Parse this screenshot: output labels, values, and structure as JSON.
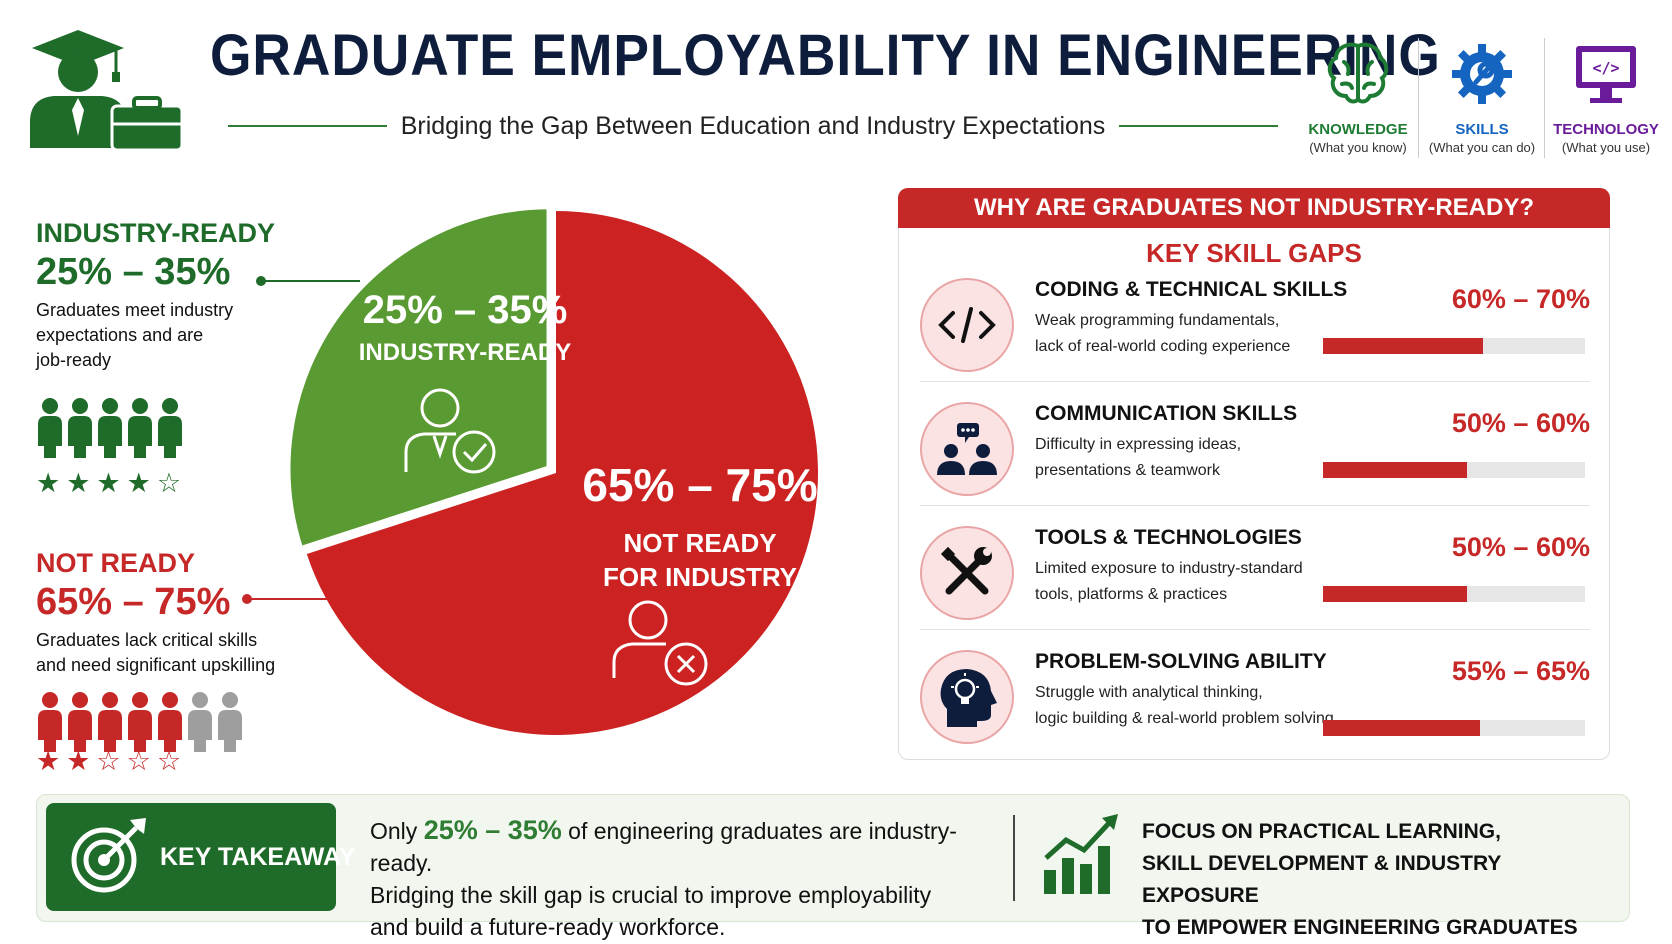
{
  "header": {
    "title": "GRADUATE EMPLOYABILITY IN ENGINEERING",
    "subtitle": "Bridging the Gap Between Education and Industry Expectations",
    "pillars": [
      {
        "icon": "brain-icon",
        "label": "KNOWLEDGE",
        "sub": "(What you know)",
        "color": "#1e7b34"
      },
      {
        "icon": "gear-wrench-icon",
        "label": "SKILLS",
        "sub": "(What you can do)",
        "color": "#1565c0"
      },
      {
        "icon": "monitor-code-icon",
        "label": "TECHNOLOGY",
        "sub": "(What you use)",
        "color": "#6a1b9a"
      }
    ]
  },
  "left": {
    "ready": {
      "heading": "INDUSTRY-READY",
      "range": "25% – 35%",
      "desc_lines": [
        "Graduates meet industry",
        "expectations and are",
        "job-ready"
      ],
      "stars": "★★★★☆",
      "rating": 4,
      "color": "#2e7d32"
    },
    "not_ready": {
      "heading": "NOT READY",
      "range": "65% – 75%",
      "desc_lines": [
        "Graduates lack critical skills",
        "and need significant upskilling"
      ],
      "stars": "★★☆☆☆",
      "rating": 2,
      "color": "#c62828"
    }
  },
  "pie": {
    "ready_pct": "25% – 35%",
    "ready_label": "INDUSTRY-READY",
    "not_pct": "65% – 75%",
    "not_label_1": "NOT READY",
    "not_label_2": "FOR INDUSTRY",
    "ready_share": 30,
    "not_share": 70,
    "green": "#5a9a32",
    "red": "#cc2222"
  },
  "panel": {
    "title": "WHY ARE GRADUATES NOT INDUSTRY-READY?",
    "subtitle": "KEY SKILL GAPS",
    "gaps": [
      {
        "icon": "code-icon",
        "title": "CODING & TECHNICAL SKILLS",
        "desc1": "Weak programming fundamentals,",
        "desc2": "lack of real-world coding experience",
        "pct": "60% – 70%",
        "level": 0.61
      },
      {
        "icon": "people-chat-icon",
        "title": "COMMUNICATION SKILLS",
        "desc1": "Difficulty in expressing ideas,",
        "desc2": "presentations & teamwork",
        "pct": "50% – 60%",
        "level": 0.55
      },
      {
        "icon": "tools-icon",
        "title": "TOOLS & TECHNOLOGIES",
        "desc1": "Limited exposure to industry-standard",
        "desc2": "tools, platforms & practices",
        "pct": "50% – 60%",
        "level": 0.55
      },
      {
        "icon": "head-lightbulb-icon",
        "title": "PROBLEM-SOLVING ABILITY",
        "desc1": "Struggle with analytical thinking,",
        "desc2": "logic building & real-world problem solving",
        "pct": "55% – 65%",
        "level": 0.6
      }
    ]
  },
  "takeaway": {
    "label": "KEY TAKEAWAY",
    "pre": "Only ",
    "highlight": "25% – 35%",
    "post": " of engineering graduates are industry-ready.",
    "line2": "Bridging the skill gap is crucial to improve employability",
    "line3": "and build a future-ready workforce.",
    "focus_lines": [
      "FOCUS ON PRACTICAL LEARNING,",
      "SKILL DEVELOPMENT & INDUSTRY EXPOSURE",
      "TO EMPOWER ENGINEERING GRADUATES"
    ]
  }
}
